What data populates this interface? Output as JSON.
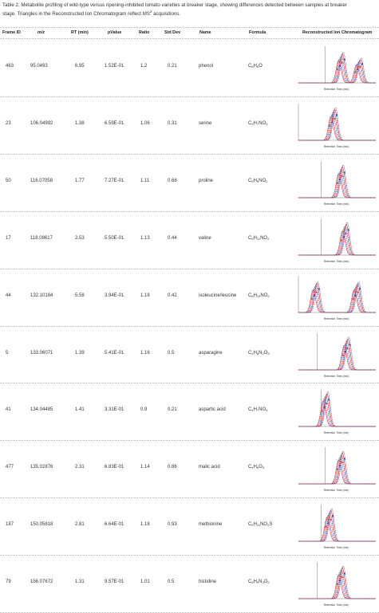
{
  "caption": {
    "line1": "Table 2. Metabolite profiling of wild-type versus ripening-inhibited tomato varieties at breaker stage, showing differences detected between samples at breaker",
    "line2": "stage. Triangles in the Reconstructed Ion Chromatogram reflect MS",
    "sup": "2",
    "line2b": " acquisitions."
  },
  "columns": {
    "frame_id": "Frame ID",
    "mz": "m/z",
    "rt": "RT (min)",
    "pvalue": "pValue",
    "ratio": "Ratio",
    "stddev": "Std Dev",
    "name": "Name",
    "formula": "Formula",
    "chrom": "Reconstructed Ion Chromatogram"
  },
  "colors": {
    "red": "#d1343a",
    "blue": "#3a3f9c",
    "pink": "#e58aa0",
    "navy": "#1e2a66"
  },
  "axis_label": "Retention Time (min)",
  "rows": [
    {
      "frame_id": "463",
      "mz": "95.0493",
      "rt": "6.95",
      "pvalue": "1.52E-01",
      "ratio": "1.2",
      "stddev": "0.21",
      "name": "phenol",
      "formula": [
        [
          "C",
          ""
        ],
        [
          "6",
          true
        ],
        [
          "H",
          ""
        ],
        [
          "6",
          true
        ],
        [
          "O",
          ""
        ]
      ]
    },
    {
      "frame_id": "23",
      "mz": "106.04992",
      "rt": "1.38",
      "pvalue": "6.59E-01",
      "ratio": "1.06",
      "stddev": "0.31",
      "name": "serine",
      "formula": [
        [
          "C",
          ""
        ],
        [
          "3",
          true
        ],
        [
          "H",
          ""
        ],
        [
          "7",
          true
        ],
        [
          "NO",
          ""
        ],
        [
          "3",
          true
        ]
      ]
    },
    {
      "frame_id": "50",
      "mz": "116.07058",
      "rt": "1.77",
      "pvalue": "7.27E-01",
      "ratio": "1.11",
      "stddev": "0.68",
      "name": "proline",
      "formula": [
        [
          "C",
          ""
        ],
        [
          "5",
          true
        ],
        [
          "H",
          ""
        ],
        [
          "9",
          true
        ],
        [
          "NO",
          ""
        ],
        [
          "2",
          true
        ]
      ]
    },
    {
      "frame_id": "17",
      "mz": "118.08617",
      "rt": "2.53",
      "pvalue": "5.50E-01",
      "ratio": "1.13",
      "stddev": "0.44",
      "name": "valine",
      "formula": [
        [
          "C",
          ""
        ],
        [
          "5",
          true
        ],
        [
          "H",
          ""
        ],
        [
          "11",
          true
        ],
        [
          "NO",
          ""
        ],
        [
          "2",
          true
        ]
      ]
    },
    {
      "frame_id": "44",
      "mz": "132.10184",
      "rt": "5.58",
      "pvalue": "3.94E-01",
      "ratio": "1.18",
      "stddev": "0.42",
      "name": "isoleucine/leucine",
      "formula": [
        [
          "C",
          ""
        ],
        [
          "6",
          true
        ],
        [
          "H",
          ""
        ],
        [
          "13",
          true
        ],
        [
          "NO",
          ""
        ],
        [
          "2",
          true
        ]
      ]
    },
    {
      "frame_id": "5",
      "mz": "133.06071",
      "rt": "1.39",
      "pvalue": "5.41E-01",
      "ratio": "1.16",
      "stddev": "0.5",
      "name": "asparagine",
      "formula": [
        [
          "C",
          ""
        ],
        [
          "4",
          true
        ],
        [
          "H",
          ""
        ],
        [
          "8",
          true
        ],
        [
          "N",
          ""
        ],
        [
          "2",
          true
        ],
        [
          "O",
          ""
        ],
        [
          "3",
          true
        ]
      ]
    },
    {
      "frame_id": "41",
      "mz": "134.04485",
      "rt": "1.41",
      "pvalue": "3.31E-01",
      "ratio": "0.9",
      "stddev": "0.21",
      "name": "aspartic acid",
      "formula": [
        [
          "C",
          ""
        ],
        [
          "4",
          true
        ],
        [
          "H",
          ""
        ],
        [
          "7",
          true
        ],
        [
          "NO",
          ""
        ],
        [
          "4",
          true
        ]
      ]
    },
    {
      "frame_id": "477",
      "mz": "135.02876",
      "rt": "2.31",
      "pvalue": "6.83E-01",
      "ratio": "1.14",
      "stddev": "0.86",
      "name": "malic acid",
      "formula": [
        [
          "C",
          ""
        ],
        [
          "4",
          true
        ],
        [
          "H",
          ""
        ],
        [
          "6",
          true
        ],
        [
          "O",
          ""
        ],
        [
          "5",
          true
        ]
      ]
    },
    {
      "frame_id": "187",
      "mz": "150.05818",
      "rt": "2.81",
      "pvalue": "6.64E-01",
      "ratio": "1.18",
      "stddev": "0.93",
      "name": "methionine",
      "formula": [
        [
          "C",
          ""
        ],
        [
          "5",
          true
        ],
        [
          "H",
          ""
        ],
        [
          "11",
          true
        ],
        [
          "NO",
          ""
        ],
        [
          "2",
          true
        ],
        [
          "S",
          ""
        ]
      ]
    },
    {
      "frame_id": "79",
      "mz": "156.07672",
      "rt": "1.31",
      "pvalue": "9.57E-01",
      "ratio": "1.01",
      "stddev": "0.5",
      "name": "histidine",
      "formula": [
        [
          "C",
          ""
        ],
        [
          "6",
          true
        ],
        [
          "H",
          ""
        ],
        [
          "9",
          true
        ],
        [
          "N",
          ""
        ],
        [
          "3",
          true
        ],
        [
          "O",
          ""
        ],
        [
          "2",
          true
        ]
      ]
    }
  ]
}
